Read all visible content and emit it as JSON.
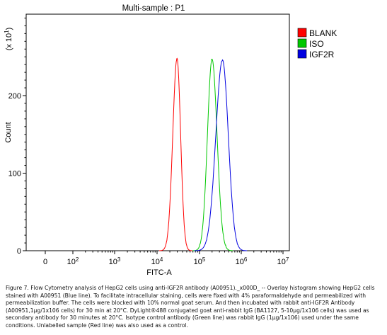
{
  "chart_data": {
    "type": "line",
    "title": "Multi-sample : P1",
    "xlabel": "FITC-A",
    "ylabel": "Count",
    "y_multiplier_label": "(x 10^1)",
    "x_scale": "log",
    "y_ticks": [
      0,
      100,
      200
    ],
    "ylim": [
      0,
      305
    ],
    "x_tick_labels": [
      {
        "base": "0",
        "exp": ""
      },
      {
        "base": "10",
        "exp": "2"
      },
      {
        "base": "10",
        "exp": "3"
      },
      {
        "base": "10",
        "exp": "4"
      },
      {
        "base": "10",
        "exp": "5"
      },
      {
        "base": "10",
        "exp": "6"
      },
      {
        "base": "10",
        "exp": "7"
      }
    ],
    "legend_position": "top-right",
    "grid": false,
    "series": [
      {
        "name": "BLANK",
        "color": "#ff0000",
        "peak_log10": 4.47,
        "peak_count": 248,
        "left_width": 0.1,
        "right_width": 0.085
      },
      {
        "name": "ISO",
        "color": "#00c800",
        "peak_log10": 5.3,
        "peak_count": 247,
        "left_width": 0.11,
        "right_width": 0.12
      },
      {
        "name": "IGF2R",
        "color": "#0000e0",
        "peak_log10": 5.55,
        "peak_count": 246,
        "left_width": 0.16,
        "right_width": 0.14
      }
    ]
  },
  "caption": "Figure 7. Flow Cytometry analysis of HepG2 cells using anti-IGF2R antibody (A00951)._x000D_ -- Overlay histogram showing HepG2 cells stained with A00951 (Blue line). To facilitate intracellular staining, cells were fixed with 4% paraformaldehyde and permeabilized with permeabilization buffer. The cells were blocked with 10% normal goat serum. And then incubated with rabbit anti-IGF2R Antibody (A00951,1μg/1x106 cells) for 30 min at 20°C. DyLight®488 conjugated goat anti-rabbit IgG (BA1127, 5-10μg/1x106 cells) was used as secondary antibody for 30 minutes at 20°C. Isotype control antibody (Green line) was rabbit IgG (1μg/1x106) used under the same conditions. Unlabelled sample (Red line) was also used as a control."
}
